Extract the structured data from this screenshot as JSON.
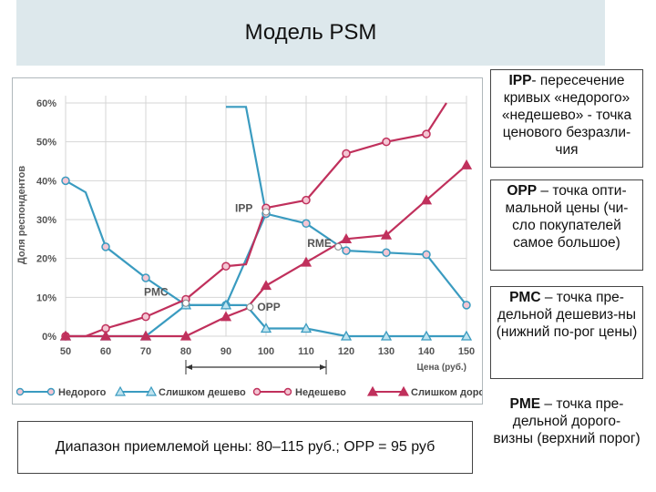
{
  "header": {
    "title": "Модель PSM"
  },
  "notes": [
    {
      "abbr": "IPP",
      "text": "- пересечение кривых «недорого» «недешево» - точка ценового безразли-чия"
    },
    {
      "abbr": "OPP",
      "text": " – точка опти-мальной цены (чи-сло покупателей самое большое)"
    },
    {
      "abbr": "PMC",
      "text": " – точка пре-дельной дешевиз-ны (нижний по-рог цены)"
    },
    {
      "abbr": "PME",
      "text": " – точка пре-дельной дорого-визны (верхний порог)"
    }
  ],
  "range_text": "Диапазон приемлемой цены: 80–115 руб.; OPP = 95 руб",
  "chart_data": {
    "type": "line",
    "ylabel": "Доля респондентов",
    "xlabel": "Цена (руб.)",
    "x": [
      50,
      60,
      70,
      80,
      90,
      100,
      110,
      120,
      130,
      140,
      150
    ],
    "xlim": [
      50,
      150
    ],
    "ylim": [
      0,
      60
    ],
    "y_ticks": [
      "0%",
      "10%",
      "20%",
      "30%",
      "40%",
      "50%",
      "60%"
    ],
    "x_ticks": [
      "50",
      "60",
      "70",
      "80",
      "90",
      "100",
      "110",
      "120",
      "130",
      "140",
      "150"
    ],
    "grid": true,
    "series": [
      {
        "name": "Недорого",
        "color": "#3a9bc0",
        "marker": "circle",
        "points": [
          [
            50,
            40
          ],
          [
            55,
            37
          ],
          [
            60,
            23
          ],
          [
            70,
            15
          ],
          [
            80,
            8
          ],
          [
            90,
            8
          ],
          [
            100,
            31.5
          ],
          [
            110,
            29
          ],
          [
            120,
            22
          ],
          [
            130,
            21.5
          ],
          [
            140,
            21
          ],
          [
            150,
            8
          ]
        ],
        "extra_line": [
          [
            90,
            59
          ],
          [
            95,
            59
          ],
          [
            100,
            31.5
          ]
        ]
      },
      {
        "name": "Слишком дешево",
        "color": "#3a9bc0",
        "marker": "triangle",
        "points": [
          [
            50,
            0
          ],
          [
            60,
            0
          ],
          [
            70,
            0
          ],
          [
            80,
            8
          ],
          [
            90,
            8
          ],
          [
            95,
            8
          ],
          [
            100,
            2
          ],
          [
            110,
            2
          ],
          [
            120,
            0
          ],
          [
            130,
            0
          ],
          [
            140,
            0
          ],
          [
            150,
            0
          ]
        ]
      },
      {
        "name": "Недешево",
        "color": "#c0305c",
        "marker": "circle",
        "points": [
          [
            50,
            0
          ],
          [
            55,
            0
          ],
          [
            60,
            2
          ],
          [
            70,
            5
          ],
          [
            80,
            9.5
          ],
          [
            90,
            18
          ],
          [
            95,
            18.5
          ],
          [
            100,
            33
          ],
          [
            110,
            35
          ],
          [
            120,
            47
          ],
          [
            130,
            50
          ],
          [
            140,
            52
          ],
          [
            145,
            60
          ]
        ]
      },
      {
        "name": "Слишком дорого",
        "color": "#c0305c",
        "marker": "triangle",
        "points": [
          [
            50,
            0
          ],
          [
            60,
            0
          ],
          [
            70,
            0
          ],
          [
            80,
            0
          ],
          [
            90,
            5
          ],
          [
            95,
            7
          ],
          [
            100,
            13
          ],
          [
            110,
            19
          ],
          [
            120,
            25
          ],
          [
            130,
            26
          ],
          [
            140,
            35
          ],
          [
            150,
            44
          ]
        ]
      }
    ],
    "annotations": [
      {
        "label": "IPP",
        "x": 100,
        "y": 32
      },
      {
        "label": "RME",
        "x": 118,
        "y": 23
      },
      {
        "label": "PMC",
        "x": 80,
        "y": 8.5
      },
      {
        "label": "OPP",
        "x": 96,
        "y": 7.5
      }
    ],
    "range_arrow": [
      80,
      115
    ],
    "legend_position": "bottom"
  }
}
